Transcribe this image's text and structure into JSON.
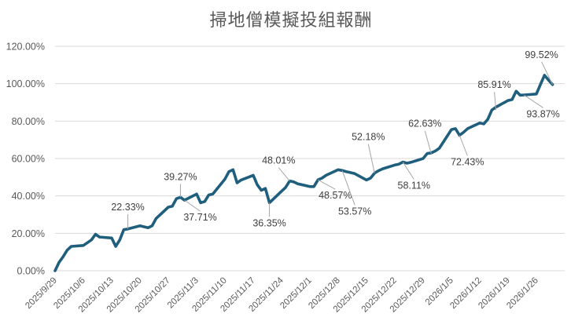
{
  "chart_data": {
    "type": "line",
    "title": "掃地僧模擬投組報酬",
    "xlabel": "",
    "ylabel": "",
    "ylim": [
      0,
      120
    ],
    "ytick_labels": [
      "0.00%",
      "20.00%",
      "40.00%",
      "60.00%",
      "80.00%",
      "100.00%",
      "120.00%"
    ],
    "ytick_values": [
      0,
      20,
      40,
      60,
      80,
      100,
      120
    ],
    "xtick_labels": [
      "2025/9/29",
      "2025/10/6",
      "2025/10/13",
      "2025/10/20",
      "2025/10/27",
      "2025/11/3",
      "2025/11/10",
      "2025/11/17",
      "2025/11/24",
      "2025/12/1",
      "2025/12/8",
      "2025/12/15",
      "2025/12/22",
      "2025/12/29",
      "2026/1/5",
      "2026/1/12",
      "2026/1/19",
      "2026/1/26"
    ],
    "xtick_positions": [
      0,
      7,
      14,
      21,
      28,
      35,
      42,
      49,
      56,
      63,
      70,
      77,
      84,
      91,
      98,
      105,
      112,
      119
    ],
    "x_range": [
      0,
      126
    ],
    "line_color": "#1f5f7d",
    "series": [
      {
        "name": "投組報酬",
        "x": [
          0,
          1,
          2,
          3,
          4,
          7,
          8,
          9,
          10,
          11,
          14,
          15,
          16,
          17,
          18,
          21,
          22,
          23,
          24,
          25,
          28,
          29,
          30,
          31,
          32,
          35,
          36,
          37,
          38,
          39,
          42,
          43,
          44,
          45,
          46,
          49,
          50,
          51,
          52,
          53,
          56,
          57,
          58,
          59,
          60,
          63,
          64,
          65,
          66,
          67,
          70,
          71,
          72,
          73,
          74,
          77,
          78,
          79,
          80,
          81,
          84,
          85,
          86,
          87,
          88,
          91,
          92,
          93,
          94,
          95,
          98,
          99,
          100,
          101,
          102,
          105,
          106,
          107,
          108,
          109,
          112,
          113,
          114,
          115,
          116,
          119,
          120,
          121,
          122,
          123
        ],
        "y": [
          0,
          4.5,
          7.5,
          11,
          13,
          13.5,
          15,
          16.5,
          19.5,
          18,
          17.5,
          13,
          16.5,
          22,
          22.33,
          24,
          23.5,
          23,
          24,
          28,
          34,
          34.5,
          38.5,
          39.27,
          37.71,
          41,
          36.35,
          37,
          40.5,
          41,
          49,
          53,
          54,
          47,
          48.5,
          51,
          46,
          43,
          44,
          36.35,
          42.5,
          44.5,
          48.01,
          47.5,
          46.5,
          45,
          45,
          48.57,
          49.5,
          51,
          54,
          53.57,
          53,
          52.5,
          52,
          48.5,
          49.5,
          52.18,
          53.5,
          54.5,
          56.5,
          57,
          58.11,
          57.5,
          58,
          60,
          62.63,
          63,
          64,
          65.5,
          75.5,
          76,
          72.43,
          74,
          76,
          79,
          78.5,
          81,
          85.91,
          87.5,
          91,
          91.5,
          96,
          93.87,
          94,
          94.5,
          99.52,
          104.5,
          102,
          99.52
        ]
      }
    ],
    "data_labels": [
      {
        "text": "22.33%",
        "x": 18,
        "y": 22.33
      },
      {
        "text": "39.27%",
        "x": 31,
        "y": 39.27
      },
      {
        "text": "37.71%",
        "x": 32,
        "y": 37.71
      },
      {
        "text": "36.35%",
        "x": 53,
        "y": 36.35
      },
      {
        "text": "48.01%",
        "x": 58,
        "y": 48.01
      },
      {
        "text": "48.57%",
        "x": 65,
        "y": 48.57
      },
      {
        "text": "53.57%",
        "x": 71,
        "y": 53.57
      },
      {
        "text": "52.18%",
        "x": 79,
        "y": 52.18
      },
      {
        "text": "58.11%",
        "x": 86,
        "y": 58.11
      },
      {
        "text": "62.63%",
        "x": 93,
        "y": 62.63
      },
      {
        "text": "72.43%",
        "x": 100,
        "y": 72.43
      },
      {
        "text": "85.91%",
        "x": 109,
        "y": 85.91
      },
      {
        "text": "93.87%",
        "x": 116,
        "y": 93.87
      },
      {
        "text": "99.52%",
        "x": 123,
        "y": 99.52
      }
    ]
  }
}
